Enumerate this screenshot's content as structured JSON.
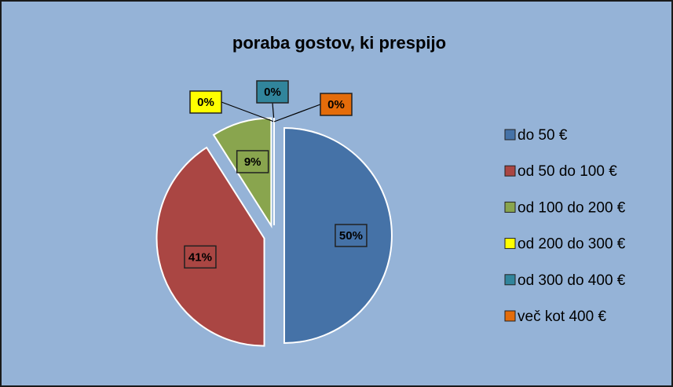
{
  "chart_data": {
    "type": "pie",
    "title": "poraba gostov, ki prespijo",
    "categories": [
      "do 50 €",
      "od 50 do 100 €",
      "od 100 do 200 €",
      "od 200 do 300 €",
      "od 300 do 400 €",
      "več kot 400 €"
    ],
    "values": [
      50,
      41,
      9,
      0,
      0,
      0
    ],
    "value_labels": [
      "50%",
      "41%",
      "9%",
      "0%",
      "0%",
      "0%"
    ],
    "colors": [
      "#4572a7",
      "#aa4643",
      "#89a54e",
      "#ffff00",
      "#31859c",
      "#e46c0a"
    ],
    "legend": "right"
  }
}
